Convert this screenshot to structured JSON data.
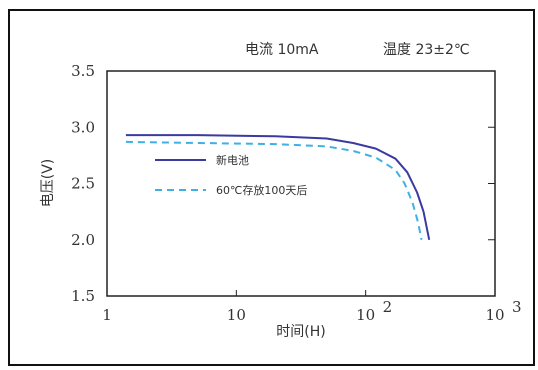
{
  "header": {
    "current": "电流 10mA",
    "temperature": "温度 23±2℃"
  },
  "chart_data": {
    "type": "line",
    "xlabel": "时间(H)",
    "ylabel": "电压(V)",
    "xscale": "log",
    "xlim": [
      1,
      1000
    ],
    "ylim": [
      1.5,
      3.5
    ],
    "x_ticks": [
      {
        "value": 1,
        "label": "1"
      },
      {
        "value": 10,
        "label": "10"
      },
      {
        "value": 100,
        "label": "10",
        "exp": "2"
      },
      {
        "value": 1000,
        "label": "10",
        "exp": "3"
      }
    ],
    "y_ticks": [
      "1.5",
      "2.0",
      "2.5",
      "3.0",
      "3.5"
    ],
    "legend_position": "center-left",
    "series": [
      {
        "name": "新电池",
        "color": "#3a3aa0",
        "style": "solid",
        "points": [
          [
            1.4,
            2.93
          ],
          [
            5,
            2.93
          ],
          [
            20,
            2.92
          ],
          [
            50,
            2.9
          ],
          [
            80,
            2.86
          ],
          [
            120,
            2.81
          ],
          [
            170,
            2.72
          ],
          [
            210,
            2.6
          ],
          [
            250,
            2.42
          ],
          [
            280,
            2.25
          ],
          [
            310,
            2.0
          ]
        ]
      },
      {
        "name": "60℃存放100天后",
        "color": "#3fb0e6",
        "style": "dashed",
        "points": [
          [
            1.4,
            2.87
          ],
          [
            5,
            2.86
          ],
          [
            20,
            2.85
          ],
          [
            50,
            2.83
          ],
          [
            80,
            2.79
          ],
          [
            120,
            2.73
          ],
          [
            170,
            2.62
          ],
          [
            200,
            2.5
          ],
          [
            230,
            2.33
          ],
          [
            255,
            2.15
          ],
          [
            270,
            2.0
          ]
        ]
      }
    ]
  }
}
